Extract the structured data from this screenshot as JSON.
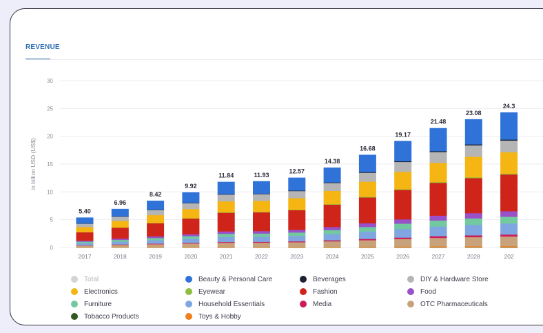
{
  "tab_label": "REVENUE",
  "chart_data": {
    "type": "bar",
    "stacked": true,
    "ylabel": "in billion USD (US$)",
    "ylim": [
      0,
      30
    ],
    "yticks": [
      0,
      5,
      10,
      15,
      20,
      25,
      30
    ],
    "grid": true,
    "legend_position": "bottom",
    "categories": [
      "2017",
      "2018",
      "2019",
      "2020",
      "2021",
      "2022",
      "2023",
      "2024",
      "2025",
      "2026",
      "2027",
      "2028",
      "202"
    ],
    "totals": [
      5.4,
      6.96,
      8.42,
      9.92,
      11.84,
      11.93,
      12.57,
      14.38,
      16.68,
      19.17,
      21.48,
      23.08,
      24.3
    ],
    "total_labels": [
      "5.40",
      "6.96",
      "8.42",
      "9.92",
      "11.84",
      "11.93",
      "12.57",
      "14.38",
      "16.68",
      "19.17",
      "21.48",
      "23.08",
      "24.3"
    ],
    "series": [
      {
        "name": "Tobacco Products",
        "color": "#2f5a1e",
        "values": [
          0.02,
          0.02,
          0.03,
          0.03,
          0.03,
          0.03,
          0.04,
          0.04,
          0.05,
          0.05,
          0.06,
          0.06,
          0.07
        ]
      },
      {
        "name": "Toys & Hobby",
        "color": "#f07f1d",
        "values": [
          0.05,
          0.06,
          0.07,
          0.08,
          0.09,
          0.09,
          0.1,
          0.12,
          0.14,
          0.16,
          0.18,
          0.19,
          0.2
        ]
      },
      {
        "name": "OTC Pharmaceuticals",
        "color": "#c8a27a",
        "values": [
          0.32,
          0.42,
          0.52,
          0.63,
          0.76,
          0.78,
          0.84,
          0.98,
          1.15,
          1.34,
          1.52,
          1.64,
          1.74
        ]
      },
      {
        "name": "Media",
        "color": "#cc1d5a",
        "values": [
          0.06,
          0.08,
          0.1,
          0.12,
          0.14,
          0.15,
          0.16,
          0.19,
          0.23,
          0.27,
          0.31,
          0.33,
          0.35
        ]
      },
      {
        "name": "Household Essentials",
        "color": "#7fa6e0",
        "values": [
          0.38,
          0.5,
          0.62,
          0.74,
          0.9,
          0.91,
          0.97,
          1.12,
          1.32,
          1.54,
          1.74,
          1.88,
          1.98
        ]
      },
      {
        "name": "Furniture",
        "color": "#72c9a0",
        "values": [
          0.25,
          0.32,
          0.4,
          0.47,
          0.57,
          0.58,
          0.62,
          0.71,
          0.83,
          0.96,
          1.08,
          1.17,
          1.22
        ]
      },
      {
        "name": "Food",
        "color": "#9a50c9",
        "values": [
          0.18,
          0.24,
          0.3,
          0.36,
          0.44,
          0.45,
          0.48,
          0.56,
          0.66,
          0.77,
          0.87,
          0.94,
          1.0
        ]
      },
      {
        "name": "Fashion",
        "color": "#cf2419",
        "values": [
          1.5,
          1.95,
          2.35,
          2.8,
          3.35,
          3.36,
          3.53,
          4.02,
          4.65,
          5.3,
          5.9,
          6.3,
          6.6
        ]
      },
      {
        "name": "Eyewear",
        "color": "#8cbf3f",
        "values": [
          0.03,
          0.04,
          0.05,
          0.06,
          0.07,
          0.07,
          0.08,
          0.09,
          0.1,
          0.12,
          0.13,
          0.14,
          0.15
        ]
      },
      {
        "name": "Electronics",
        "color": "#f5b512",
        "values": [
          0.92,
          1.18,
          1.42,
          1.66,
          1.98,
          1.99,
          2.09,
          2.38,
          2.74,
          3.12,
          3.46,
          3.7,
          3.85
        ]
      },
      {
        "name": "DIY & Hardware Store",
        "color": "#b5b5b5",
        "values": [
          0.6,
          0.76,
          0.9,
          1.04,
          1.22,
          1.22,
          1.27,
          1.42,
          1.6,
          1.78,
          1.95,
          2.05,
          2.1
        ]
      },
      {
        "name": "Beverages",
        "color": "#1c2233",
        "values": [
          0.04,
          0.05,
          0.06,
          0.07,
          0.08,
          0.08,
          0.09,
          0.1,
          0.12,
          0.14,
          0.16,
          0.17,
          0.18
        ]
      },
      {
        "name": "Beauty & Personal Care",
        "color": "#2f72d8",
        "values": [
          1.05,
          1.34,
          1.6,
          1.86,
          2.19,
          2.22,
          2.3,
          2.65,
          3.09,
          3.62,
          4.12,
          4.51,
          4.86
        ]
      }
    ],
    "legend": [
      {
        "name": "Total",
        "color": "#d3d3d8",
        "muted": true
      },
      {
        "name": "Beauty & Personal Care",
        "color": "#2f72d8"
      },
      {
        "name": "Beverages",
        "color": "#1c2233"
      },
      {
        "name": "DIY & Hardware Store",
        "color": "#b5b5b5"
      },
      {
        "name": "Electronics",
        "color": "#f5b512"
      },
      {
        "name": "Eyewear",
        "color": "#8cbf3f"
      },
      {
        "name": "Fashion",
        "color": "#cf2419"
      },
      {
        "name": "Food",
        "color": "#9a50c9"
      },
      {
        "name": "Furniture",
        "color": "#72c9a0"
      },
      {
        "name": "Household Essentials",
        "color": "#7fa6e0"
      },
      {
        "name": "Media",
        "color": "#cc1d5a"
      },
      {
        "name": "OTC Pharmaceuticals",
        "color": "#c8a27a"
      },
      {
        "name": "Tobacco Products",
        "color": "#2f5a1e"
      },
      {
        "name": "Toys & Hobby",
        "color": "#f07f1d"
      }
    ]
  }
}
